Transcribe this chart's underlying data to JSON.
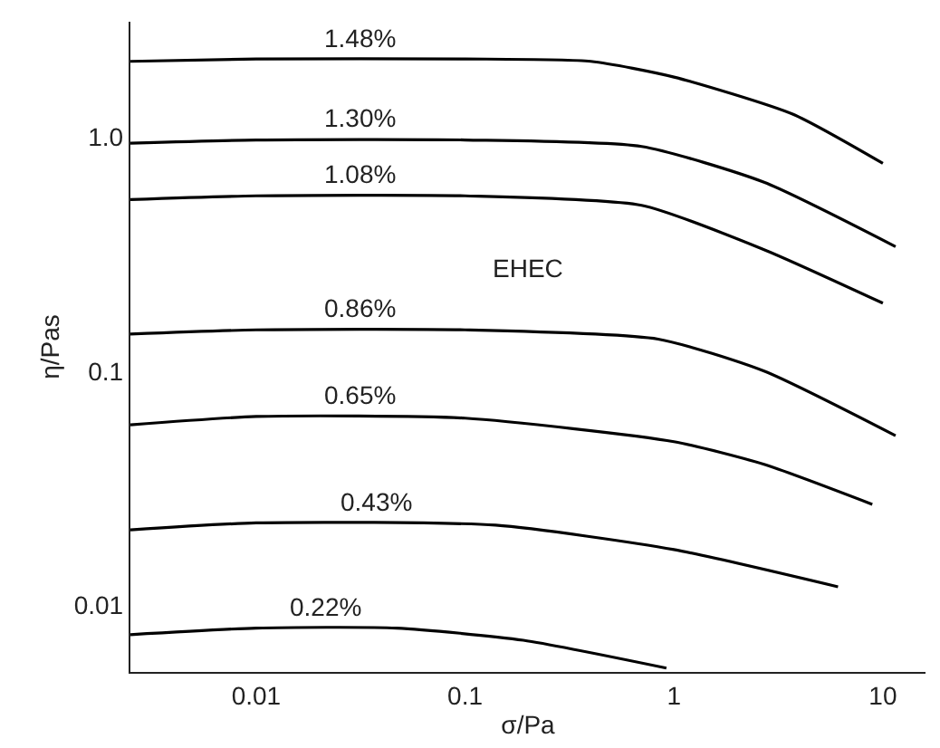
{
  "chart_data": {
    "type": "line",
    "xlabel": "σ/Pa",
    "ylabel": "η/Pas",
    "log": "xy",
    "xlim": [
      0.0025,
      16
    ],
    "xticks": [
      0.01,
      0.1,
      1,
      10
    ],
    "ylim": [
      0.0052,
      3.1
    ],
    "yticks": [
      0.01,
      0.1,
      {
        "value": 1,
        "label": "1.0"
      }
    ],
    "grid": false,
    "legend": false,
    "marker": "none",
    "line_style": "solid",
    "annotations": [
      "EHEC"
    ],
    "series": [
      {
        "name": "1.48%",
        "color": "#000000",
        "x": [
          0.0025,
          0.01,
          0.1,
          0.4,
          1,
          3.7,
          10
        ],
        "values": [
          2.1,
          2.15,
          2.15,
          2.1,
          1.8,
          1.25,
          0.77
        ]
      },
      {
        "name": "1.30%",
        "color": "#000000",
        "x": [
          0.0025,
          0.01,
          0.1,
          0.7,
          2.7,
          11.5
        ],
        "values": [
          0.94,
          0.97,
          0.97,
          0.91,
          0.64,
          0.34
        ]
      },
      {
        "name": "1.08%",
        "color": "#000000",
        "x": [
          0.0025,
          0.01,
          0.1,
          0.7,
          2.7,
          10
        ],
        "values": [
          0.54,
          0.56,
          0.56,
          0.51,
          0.33,
          0.195
        ]
      },
      {
        "name": "0.86%",
        "color": "#000000",
        "x": [
          0.0025,
          0.01,
          0.1,
          0.84,
          2.7,
          11.5
        ],
        "values": [
          0.144,
          0.15,
          0.15,
          0.137,
          0.1,
          0.053
        ]
      },
      {
        "name": "0.65%",
        "color": "#000000",
        "x": [
          0.0025,
          0.01,
          0.1,
          1,
          2.7,
          8.9
        ],
        "values": [
          0.059,
          0.064,
          0.063,
          0.05,
          0.04,
          0.027
        ]
      },
      {
        "name": "0.43%",
        "color": "#000000",
        "x": [
          0.0025,
          0.01,
          0.14,
          1,
          6.1
        ],
        "values": [
          0.021,
          0.0225,
          0.022,
          0.0173,
          0.012
        ]
      },
      {
        "name": "0.22%",
        "color": "#000000",
        "x": [
          0.0025,
          0.01,
          0.047,
          0.19,
          0.92
        ],
        "values": [
          0.0075,
          0.008,
          0.008,
          0.0071,
          0.0054
        ]
      }
    ]
  }
}
